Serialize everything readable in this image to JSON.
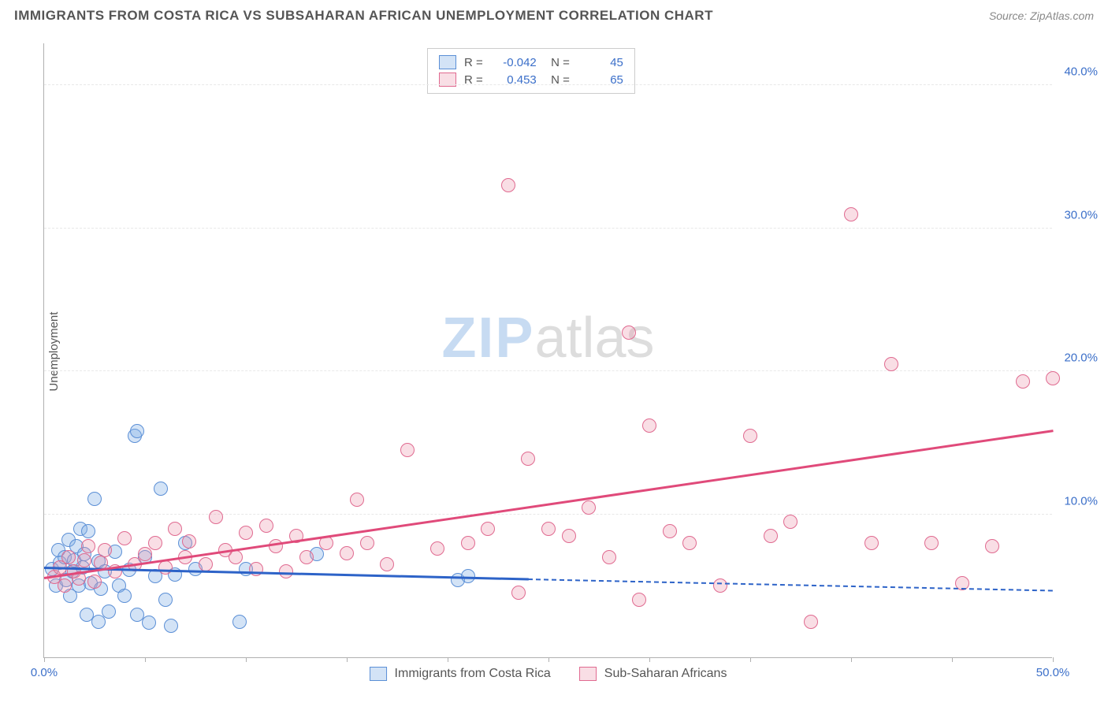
{
  "header": {
    "title": "IMMIGRANTS FROM COSTA RICA VS SUBSAHARAN AFRICAN UNEMPLOYMENT CORRELATION CHART",
    "source": "Source: ZipAtlas.com"
  },
  "chart": {
    "type": "scatter",
    "y_axis_label": "Unemployment",
    "xlim": [
      0,
      50
    ],
    "ylim": [
      0,
      43
    ],
    "x_ticks": [
      0,
      5,
      10,
      15,
      20,
      25,
      30,
      35,
      40,
      45,
      50
    ],
    "x_tick_labels": {
      "0": "0.0%",
      "50": "50.0%"
    },
    "y_ticks": [
      10,
      20,
      30,
      40
    ],
    "y_tick_labels": [
      "10.0%",
      "20.0%",
      "30.0%",
      "40.0%"
    ],
    "grid_color": "#e8e8e8",
    "axis_color": "#b0b0b0",
    "tick_label_color": "#3b6fc9",
    "background_color": "#ffffff",
    "dot_radius": 9,
    "series": [
      {
        "name": "Immigrants from Costa Rica",
        "fill": "rgba(130,175,230,0.35)",
        "stroke": "#5b8fd6",
        "trend_color": "#2d63c8",
        "r_value": "-0.042",
        "n_value": "45",
        "trend": {
          "x1": 0,
          "y1": 6.2,
          "x2": 24,
          "y2": 5.4,
          "dashed_to_x": 50,
          "dashed_to_y": 4.6
        },
        "points": [
          [
            0.4,
            6.2
          ],
          [
            0.6,
            5.0
          ],
          [
            0.7,
            7.5
          ],
          [
            0.8,
            6.6
          ],
          [
            1.0,
            7.0
          ],
          [
            1.1,
            5.4
          ],
          [
            1.2,
            8.2
          ],
          [
            1.3,
            4.3
          ],
          [
            1.4,
            6.0
          ],
          [
            1.5,
            6.8
          ],
          [
            1.6,
            7.8
          ],
          [
            1.7,
            5.0
          ],
          [
            1.8,
            9.0
          ],
          [
            1.9,
            6.3
          ],
          [
            2.0,
            7.2
          ],
          [
            2.1,
            3.0
          ],
          [
            2.2,
            8.8
          ],
          [
            2.3,
            5.2
          ],
          [
            2.5,
            11.1
          ],
          [
            2.7,
            2.5
          ],
          [
            2.7,
            6.7
          ],
          [
            2.8,
            4.8
          ],
          [
            3.0,
            6.0
          ],
          [
            3.2,
            3.2
          ],
          [
            3.5,
            7.4
          ],
          [
            3.7,
            5.0
          ],
          [
            4.0,
            4.3
          ],
          [
            4.2,
            6.1
          ],
          [
            4.5,
            15.5
          ],
          [
            4.6,
            15.8
          ],
          [
            4.6,
            3.0
          ],
          [
            5.0,
            7.0
          ],
          [
            5.2,
            2.4
          ],
          [
            5.5,
            5.7
          ],
          [
            5.8,
            11.8
          ],
          [
            6.0,
            4.0
          ],
          [
            6.3,
            2.2
          ],
          [
            6.5,
            5.8
          ],
          [
            7.0,
            8.0
          ],
          [
            7.5,
            6.2
          ],
          [
            9.7,
            2.5
          ],
          [
            10.0,
            6.2
          ],
          [
            13.5,
            7.2
          ],
          [
            20.5,
            5.4
          ],
          [
            21.0,
            5.7
          ]
        ]
      },
      {
        "name": "Sub-Saharan Africans",
        "fill": "rgba(235,145,170,0.30)",
        "stroke": "#e06a90",
        "trend_color": "#e04a7a",
        "r_value": "0.453",
        "n_value": "65",
        "trend": {
          "x1": 0,
          "y1": 5.5,
          "x2": 50,
          "y2": 15.8
        },
        "points": [
          [
            0.5,
            5.6
          ],
          [
            0.8,
            6.3
          ],
          [
            1.0,
            5.0
          ],
          [
            1.2,
            7.0
          ],
          [
            1.5,
            6.0
          ],
          [
            1.7,
            5.5
          ],
          [
            2.0,
            6.8
          ],
          [
            2.2,
            7.8
          ],
          [
            2.5,
            5.3
          ],
          [
            2.8,
            6.6
          ],
          [
            3.0,
            7.5
          ],
          [
            3.5,
            6.0
          ],
          [
            4.0,
            8.3
          ],
          [
            4.5,
            6.5
          ],
          [
            5.0,
            7.2
          ],
          [
            5.5,
            8.0
          ],
          [
            6.0,
            6.3
          ],
          [
            6.5,
            9.0
          ],
          [
            7.0,
            7.0
          ],
          [
            7.2,
            8.1
          ],
          [
            8.0,
            6.5
          ],
          [
            8.5,
            9.8
          ],
          [
            9.0,
            7.5
          ],
          [
            9.5,
            7.0
          ],
          [
            10.0,
            8.7
          ],
          [
            10.5,
            6.2
          ],
          [
            11.0,
            9.2
          ],
          [
            11.5,
            7.8
          ],
          [
            12.0,
            6.0
          ],
          [
            12.5,
            8.5
          ],
          [
            13.0,
            7.0
          ],
          [
            14.0,
            8.0
          ],
          [
            15.0,
            7.3
          ],
          [
            15.5,
            11.0
          ],
          [
            16.0,
            8.0
          ],
          [
            17.0,
            6.5
          ],
          [
            18.0,
            14.5
          ],
          [
            19.5,
            7.6
          ],
          [
            21.0,
            8.0
          ],
          [
            22.0,
            9.0
          ],
          [
            23.0,
            33.0
          ],
          [
            23.5,
            4.5
          ],
          [
            24.0,
            13.9
          ],
          [
            25.0,
            9.0
          ],
          [
            26.0,
            8.5
          ],
          [
            27.0,
            10.5
          ],
          [
            28.0,
            7.0
          ],
          [
            29.0,
            22.7
          ],
          [
            29.5,
            4.0
          ],
          [
            30.0,
            16.2
          ],
          [
            31.0,
            8.8
          ],
          [
            32.0,
            8.0
          ],
          [
            33.5,
            5.0
          ],
          [
            35.0,
            15.5
          ],
          [
            36.0,
            8.5
          ],
          [
            37.0,
            9.5
          ],
          [
            38.0,
            2.5
          ],
          [
            40.0,
            31.0
          ],
          [
            41.0,
            8.0
          ],
          [
            42.0,
            20.5
          ],
          [
            44.0,
            8.0
          ],
          [
            45.5,
            5.2
          ],
          [
            47.0,
            7.8
          ],
          [
            48.5,
            19.3
          ],
          [
            50.0,
            19.5
          ]
        ]
      }
    ],
    "legend_bottom": [
      "Immigrants from Costa Rica",
      "Sub-Saharan Africans"
    ],
    "watermark": {
      "zip": "ZIP",
      "atlas": "atlas"
    }
  }
}
